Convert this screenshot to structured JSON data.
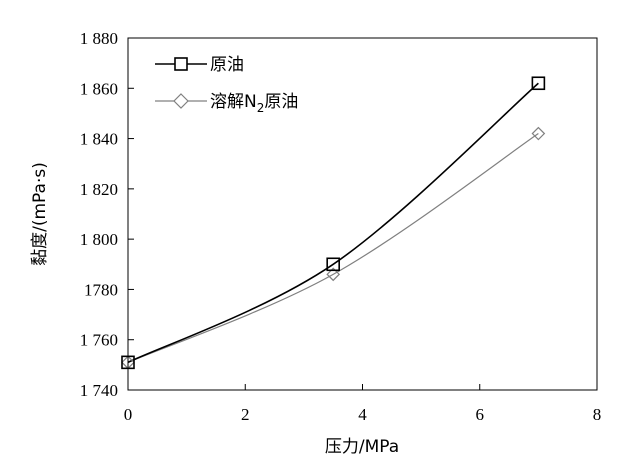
{
  "chart_data": {
    "type": "line",
    "title": "",
    "xlabel": "压力/MPa",
    "ylabel": "黏度/(mPa·s)",
    "xlim": [
      0,
      8
    ],
    "ylim": [
      1740,
      1880
    ],
    "xticks": [
      0,
      2,
      4,
      6,
      8
    ],
    "xtick_labels": [
      "0",
      "2",
      "4",
      "6",
      "8"
    ],
    "yticks": [
      1740,
      1760,
      1780,
      1800,
      1820,
      1840,
      1860,
      1880
    ],
    "ytick_labels": [
      "1 740",
      "1 760",
      "1780",
      "1 800",
      "1 820",
      "1 840",
      "1 860",
      "1 880"
    ],
    "grid": false,
    "legend_position": "top-left",
    "series": [
      {
        "name": "原油",
        "marker": "square",
        "color": "#000000",
        "x": [
          0,
          3.5,
          7
        ],
        "y": [
          1751,
          1790,
          1862
        ]
      },
      {
        "name_parts": [
          "溶解N",
          "2",
          "原油"
        ],
        "marker": "diamond",
        "color": "#808080",
        "x": [
          0,
          3.5,
          7
        ],
        "y": [
          1751,
          1786,
          1842
        ]
      }
    ]
  }
}
